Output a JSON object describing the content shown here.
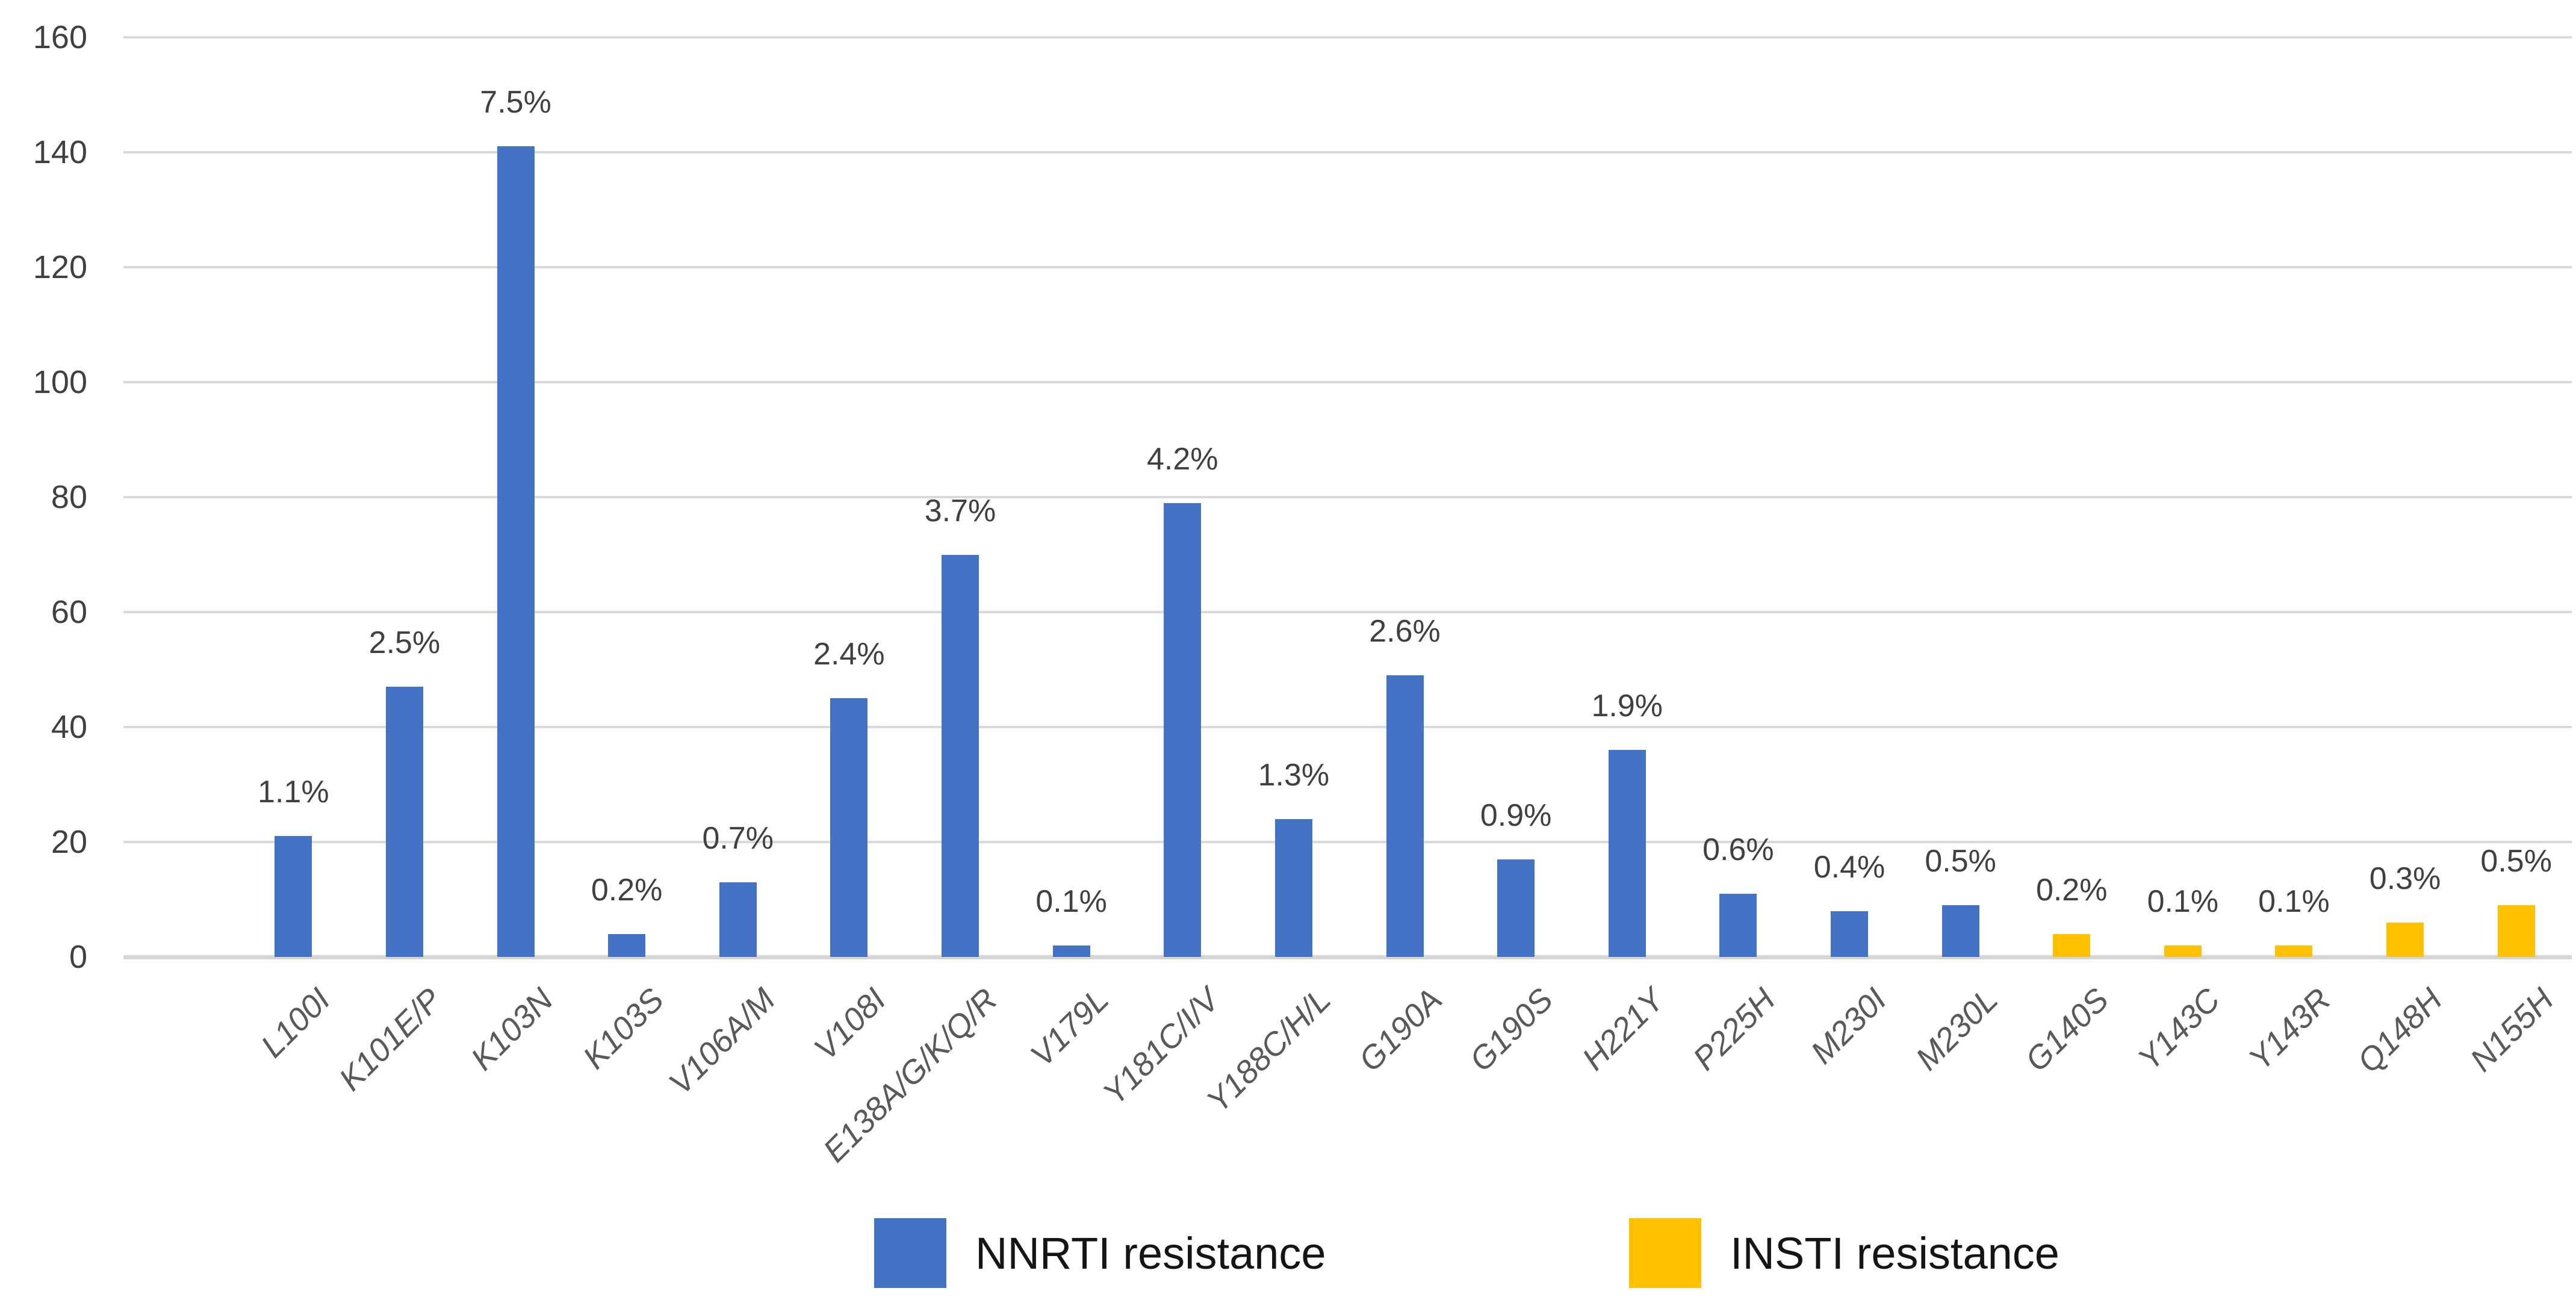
{
  "chart_data": {
    "type": "bar",
    "title": "",
    "xlabel": "",
    "ylabel": "",
    "ylim": [
      0,
      160
    ],
    "yticks": [
      0,
      20,
      40,
      60,
      80,
      100,
      120,
      140,
      160
    ],
    "grid": "horizontal",
    "legend_position": "bottom",
    "series": [
      {
        "name": "NNRTI resistance",
        "color": "#4472c4"
      },
      {
        "name": "INSTI resistance",
        "color": "#ffc000"
      }
    ],
    "categories": [
      "L100I",
      "K101E/P",
      "K103N",
      "K103S",
      "V106A/M",
      "V108I",
      "E138A/G/K/Q/R",
      "V179L",
      "Y181C/I/V",
      "Y188C/H/L",
      "G190A",
      "G190S",
      "H221Y",
      "P225H",
      "M230I",
      "M230L",
      "G140S",
      "Y143C",
      "Y143R",
      "Q148H",
      "N155H"
    ],
    "bars": [
      {
        "category": "L100I",
        "count": 21,
        "pct_label": "1.1%",
        "series": "NNRTI resistance"
      },
      {
        "category": "K101E/P",
        "count": 47,
        "pct_label": "2.5%",
        "series": "NNRTI resistance"
      },
      {
        "category": "K103N",
        "count": 141,
        "pct_label": "7.5%",
        "series": "NNRTI resistance"
      },
      {
        "category": "K103S",
        "count": 4,
        "pct_label": "0.2%",
        "series": "NNRTI resistance"
      },
      {
        "category": "V106A/M",
        "count": 13,
        "pct_label": "0.7%",
        "series": "NNRTI resistance"
      },
      {
        "category": "V108I",
        "count": 45,
        "pct_label": "2.4%",
        "series": "NNRTI resistance"
      },
      {
        "category": "E138A/G/K/Q/R",
        "count": 70,
        "pct_label": "3.7%",
        "series": "NNRTI resistance"
      },
      {
        "category": "V179L",
        "count": 2,
        "pct_label": "0.1%",
        "series": "NNRTI resistance"
      },
      {
        "category": "Y181C/I/V",
        "count": 79,
        "pct_label": "4.2%",
        "series": "NNRTI resistance"
      },
      {
        "category": "Y188C/H/L",
        "count": 24,
        "pct_label": "1.3%",
        "series": "NNRTI resistance"
      },
      {
        "category": "G190A",
        "count": 49,
        "pct_label": "2.6%",
        "series": "NNRTI resistance"
      },
      {
        "category": "G190S",
        "count": 17,
        "pct_label": "0.9%",
        "series": "NNRTI resistance"
      },
      {
        "category": "H221Y",
        "count": 36,
        "pct_label": "1.9%",
        "series": "NNRTI resistance"
      },
      {
        "category": "P225H",
        "count": 11,
        "pct_label": "0.6%",
        "series": "NNRTI resistance"
      },
      {
        "category": "M230I",
        "count": 8,
        "pct_label": "0.4%",
        "series": "NNRTI resistance"
      },
      {
        "category": "M230L",
        "count": 9,
        "pct_label": "0.5%",
        "series": "NNRTI resistance"
      },
      {
        "category": "G140S",
        "count": 4,
        "pct_label": "0.2%",
        "series": "INSTI resistance"
      },
      {
        "category": "Y143C",
        "count": 2,
        "pct_label": "0.1%",
        "series": "INSTI resistance"
      },
      {
        "category": "Y143R",
        "count": 2,
        "pct_label": "0.1%",
        "series": "INSTI resistance"
      },
      {
        "category": "Q148H",
        "count": 6,
        "pct_label": "0.3%",
        "series": "INSTI resistance"
      },
      {
        "category": "N155H",
        "count": 9,
        "pct_label": "0.5%",
        "series": "INSTI resistance"
      }
    ]
  },
  "legend": {
    "items": [
      {
        "label": "NNRTI resistance",
        "color": "#4472c4"
      },
      {
        "label": "INSTI resistance",
        "color": "#ffc000"
      }
    ]
  }
}
